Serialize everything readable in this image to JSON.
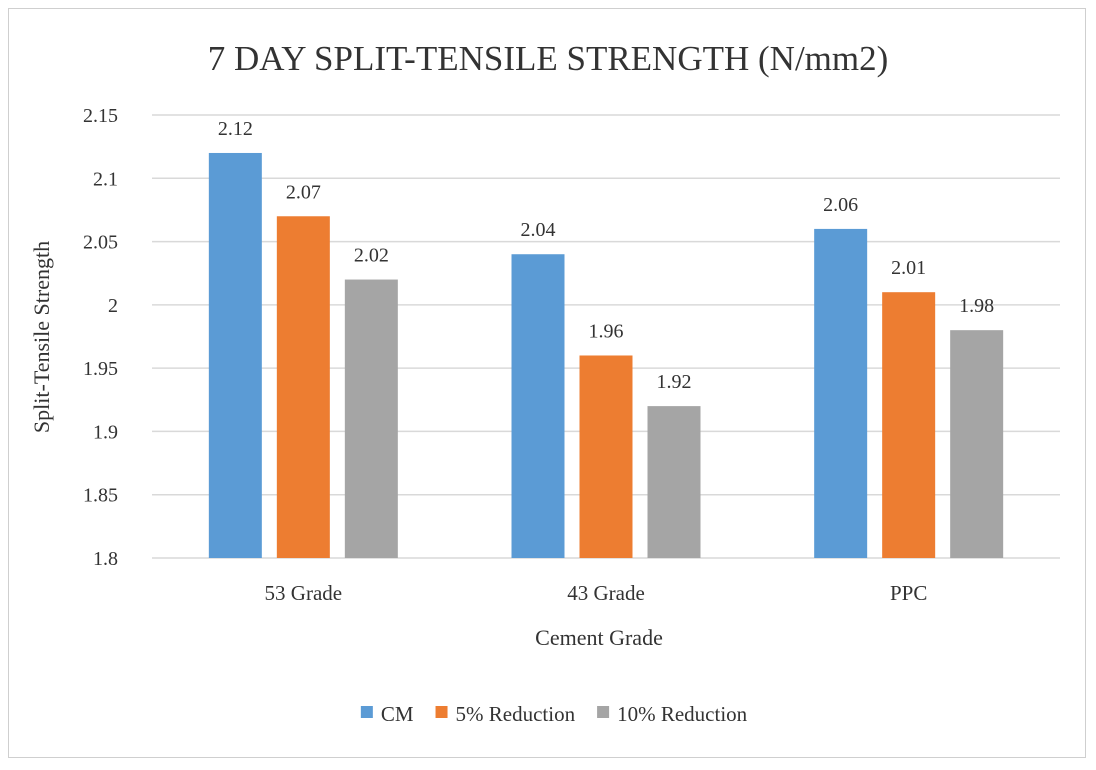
{
  "chart_data": {
    "type": "bar",
    "title": "7 DAY SPLIT-TENSILE STRENGTH (N/mm2)",
    "xlabel": "Cement Grade",
    "ylabel": "Split-Tensile Strength",
    "categories": [
      "53 Grade",
      "43 Grade",
      "PPC"
    ],
    "series": [
      {
        "name": "CM",
        "color": "#5b9bd5",
        "values": [
          2.12,
          2.04,
          2.06
        ],
        "labels": [
          "2.12",
          "2.04",
          "2.06"
        ]
      },
      {
        "name": "5% Reduction",
        "color": "#ed7d31",
        "values": [
          2.07,
          1.96,
          2.01
        ],
        "labels": [
          "2.07",
          "1.96",
          "2.01"
        ]
      },
      {
        "name": "10% Reduction",
        "color": "#a5a5a5",
        "values": [
          2.02,
          1.92,
          1.98
        ],
        "labels": [
          "2.02",
          "1.92",
          "1.98"
        ]
      }
    ],
    "ylim": [
      1.8,
      2.15
    ],
    "yticks": [
      1.8,
      1.85,
      1.9,
      1.95,
      2,
      2.05,
      2.1,
      2.15
    ],
    "ytick_labels": [
      "1.8",
      "1.85",
      "1.9",
      "1.95",
      "2",
      "2.05",
      "2.1",
      "2.15"
    ],
    "grid": true,
    "legend_position": "bottom"
  }
}
